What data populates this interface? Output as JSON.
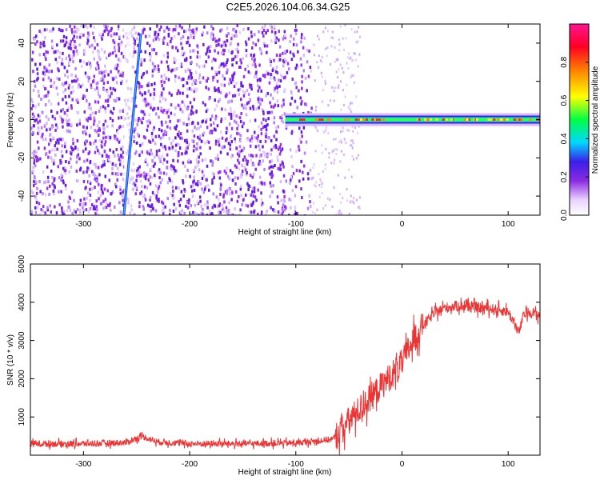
{
  "title": "C2E5.2026.104.06.34.G25",
  "colors": {
    "snr_line": "#ee3333",
    "frame": "#000000",
    "background": "#ffffff"
  },
  "chart_data": [
    {
      "type": "heatmap",
      "xlabel": "Height of straight line (km)",
      "ylabel": "Frequency (Hz)",
      "xlim": [
        -350,
        130
      ],
      "ylim": [
        -50,
        50
      ],
      "x_ticks": [
        -300,
        -200,
        -100,
        0,
        100
      ],
      "y_ticks": [
        -40,
        -20,
        0,
        20,
        40
      ],
      "colorbar": {
        "label": "Normalized spectral amplitude",
        "range": [
          0,
          1
        ],
        "ticks": [
          "0.0",
          "0.2",
          "0.4",
          "0.6",
          "0.8"
        ],
        "colormap": [
          "#ffffff",
          "#e9d3ff",
          "#8a2be2",
          "#3b1fe8",
          "#00d8ff",
          "#00ff44",
          "#ffff00",
          "#ff8800",
          "#ff0022",
          "#ff1493"
        ]
      },
      "features": [
        {
          "name": "noise_region",
          "x_range": [
            -350,
            -85
          ],
          "level": 0.12
        },
        {
          "name": "faint_tail",
          "x_range": [
            -85,
            -40
          ],
          "level": 0.05
        },
        {
          "name": "streak",
          "x": [
            -262,
            -246
          ],
          "y": [
            -50,
            45
          ],
          "level": 0.3
        },
        {
          "name": "carrier",
          "x_range": [
            -110,
            130
          ],
          "y": 0,
          "level": 0.95
        }
      ]
    },
    {
      "type": "line",
      "xlabel": "Height of straight line (km)",
      "ylabel": "SNR (10 * v/v)",
      "xlim": [
        -350,
        130
      ],
      "ylim": [
        0,
        5000
      ],
      "x_ticks": [
        -300,
        -200,
        -100,
        0,
        100
      ],
      "y_ticks": [
        1000,
        2000,
        3000,
        4000,
        5000
      ],
      "series": [
        {
          "x": [
            -350,
            -300,
            -260,
            -245,
            -230,
            -200,
            -150,
            -100,
            -80,
            -65,
            -50,
            -40,
            -30,
            -20,
            -10,
            0,
            10,
            20,
            30,
            40,
            50,
            60,
            70,
            80,
            90,
            100,
            105,
            110,
            115,
            120,
            130
          ],
          "y": [
            300,
            300,
            330,
            500,
            350,
            300,
            300,
            320,
            370,
            420,
            900,
            1200,
            1500,
            1800,
            2100,
            2400,
            3000,
            3400,
            3700,
            3850,
            3900,
            3900,
            3850,
            3850,
            3800,
            3750,
            3500,
            3200,
            3700,
            3750,
            3650
          ]
        }
      ]
    }
  ]
}
